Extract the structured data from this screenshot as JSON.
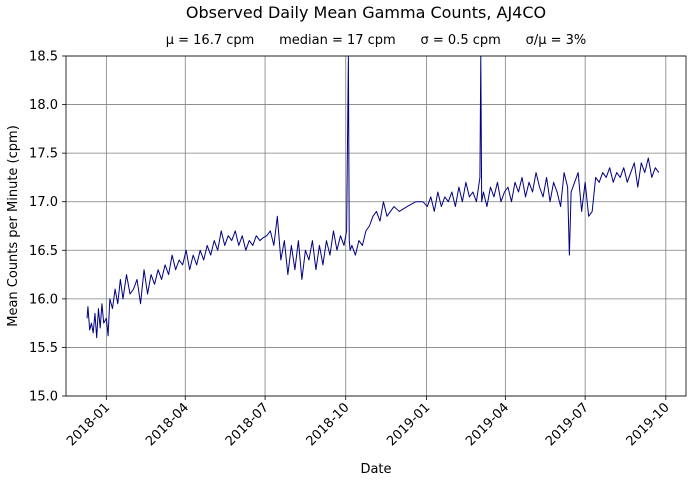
{
  "chart_data": {
    "type": "line",
    "title": "Observed Daily Mean Gamma Counts, AJ4CO",
    "subtitle": "μ = 16.7 cpm      median = 17 cpm      σ = 0.5 cpm      σ/μ = 3%",
    "xlabel": "Date",
    "ylabel": "Mean Counts per Minute (cpm)",
    "xlim": [
      "2017-11-16",
      "2019-10-24"
    ],
    "ylim": [
      15.0,
      18.5
    ],
    "grid": true,
    "line_color": "#000080",
    "x_ticks": [
      "2018-01-01",
      "2018-04-01",
      "2018-07-01",
      "2018-10-01",
      "2019-01-01",
      "2019-04-01",
      "2019-07-01",
      "2019-10-01"
    ],
    "x_tick_labels": [
      "2018-01",
      "2018-04",
      "2018-07",
      "2018-10",
      "2019-01",
      "2019-04",
      "2019-07",
      "2019-10"
    ],
    "y_ticks": [
      15.0,
      15.5,
      16.0,
      16.5,
      17.0,
      17.5,
      18.0,
      18.5
    ],
    "y_tick_labels": [
      "15.0",
      "15.5",
      "16.0",
      "16.5",
      "17.0",
      "17.5",
      "18.0",
      "18.5"
    ],
    "series": [
      {
        "x": [
          "2017-12-10",
          "2017-12-11",
          "2017-12-13",
          "2017-12-15",
          "2017-12-17",
          "2017-12-19",
          "2017-12-21",
          "2017-12-23",
          "2017-12-25",
          "2017-12-27",
          "2017-12-29",
          "2018-01-01",
          "2018-01-03",
          "2018-01-05",
          "2018-01-08",
          "2018-01-11",
          "2018-01-14",
          "2018-01-17",
          "2018-01-20",
          "2018-01-24",
          "2018-01-28",
          "2018-02-01",
          "2018-02-05",
          "2018-02-09",
          "2018-02-13",
          "2018-02-17",
          "2018-02-21",
          "2018-02-25",
          "2018-03-01",
          "2018-03-05",
          "2018-03-09",
          "2018-03-13",
          "2018-03-17",
          "2018-03-21",
          "2018-03-25",
          "2018-03-29",
          "2018-04-02",
          "2018-04-06",
          "2018-04-10",
          "2018-04-14",
          "2018-04-18",
          "2018-04-22",
          "2018-04-26",
          "2018-04-30",
          "2018-05-04",
          "2018-05-08",
          "2018-05-12",
          "2018-05-16",
          "2018-05-20",
          "2018-05-24",
          "2018-05-28",
          "2018-06-01",
          "2018-06-05",
          "2018-06-09",
          "2018-06-13",
          "2018-06-17",
          "2018-06-21",
          "2018-06-25",
          "2018-06-29",
          "2018-07-03",
          "2018-07-07",
          "2018-07-11",
          "2018-07-15",
          "2018-07-19",
          "2018-07-23",
          "2018-07-27",
          "2018-07-31",
          "2018-08-04",
          "2018-08-08",
          "2018-08-12",
          "2018-08-16",
          "2018-08-20",
          "2018-08-24",
          "2018-08-28",
          "2018-09-01",
          "2018-09-05",
          "2018-09-09",
          "2018-09-13",
          "2018-09-17",
          "2018-09-21",
          "2018-09-25",
          "2018-09-29",
          "2018-10-02",
          "2018-10-04",
          "2018-10-05",
          "2018-10-06",
          "2018-10-08",
          "2018-10-12",
          "2018-10-16",
          "2018-10-20",
          "2018-10-24",
          "2018-10-28",
          "2018-11-01",
          "2018-11-05",
          "2018-11-09",
          "2018-11-13",
          "2018-11-17",
          "2018-11-21",
          "2018-11-25",
          "2018-12-01",
          "2018-12-10",
          "2018-12-20",
          "2018-12-28",
          "2019-01-02",
          "2019-01-06",
          "2019-01-10",
          "2019-01-14",
          "2019-01-18",
          "2019-01-22",
          "2019-01-26",
          "2019-01-30",
          "2019-02-03",
          "2019-02-07",
          "2019-02-11",
          "2019-02-15",
          "2019-02-19",
          "2019-02-23",
          "2019-02-27",
          "2019-03-03",
          "2019-03-04",
          "2019-03-05",
          "2019-03-07",
          "2019-03-11",
          "2019-03-15",
          "2019-03-19",
          "2019-03-23",
          "2019-03-27",
          "2019-03-31",
          "2019-04-04",
          "2019-04-08",
          "2019-04-12",
          "2019-04-16",
          "2019-04-20",
          "2019-04-24",
          "2019-04-28",
          "2019-05-02",
          "2019-05-06",
          "2019-05-10",
          "2019-05-14",
          "2019-05-18",
          "2019-05-22",
          "2019-05-26",
          "2019-05-30",
          "2019-06-03",
          "2019-06-07",
          "2019-06-11",
          "2019-06-13",
          "2019-06-15",
          "2019-06-19",
          "2019-06-23",
          "2019-06-27",
          "2019-07-01",
          "2019-07-05",
          "2019-07-09",
          "2019-07-13",
          "2019-07-17",
          "2019-07-21",
          "2019-07-25",
          "2019-07-29",
          "2019-08-02",
          "2019-08-06",
          "2019-08-10",
          "2019-08-14",
          "2019-08-18",
          "2019-08-22",
          "2019-08-26",
          "2019-08-30",
          "2019-09-03",
          "2019-09-07",
          "2019-09-11",
          "2019-09-15",
          "2019-09-19",
          "2019-09-23"
        ],
        "y": [
          15.8,
          15.92,
          15.68,
          15.75,
          15.65,
          15.85,
          15.6,
          15.9,
          15.7,
          15.95,
          15.75,
          15.8,
          15.62,
          16.0,
          15.9,
          16.1,
          15.95,
          16.2,
          16.0,
          16.25,
          16.05,
          16.1,
          16.2,
          15.95,
          16.3,
          16.05,
          16.25,
          16.15,
          16.3,
          16.2,
          16.35,
          16.25,
          16.45,
          16.3,
          16.4,
          16.35,
          16.5,
          16.3,
          16.45,
          16.35,
          16.5,
          16.4,
          16.55,
          16.45,
          16.6,
          16.5,
          16.7,
          16.55,
          16.65,
          16.6,
          16.7,
          16.55,
          16.65,
          16.5,
          16.6,
          16.55,
          16.65,
          16.6,
          16.63,
          16.65,
          16.7,
          16.55,
          16.85,
          16.4,
          16.6,
          16.25,
          16.55,
          16.3,
          16.6,
          16.2,
          16.5,
          16.4,
          16.6,
          16.3,
          16.55,
          16.35,
          16.6,
          16.45,
          16.7,
          16.5,
          16.65,
          16.55,
          16.7,
          18.5,
          16.6,
          16.5,
          16.55,
          16.45,
          16.6,
          16.55,
          16.7,
          16.75,
          16.85,
          16.9,
          16.8,
          17.0,
          16.85,
          16.9,
          16.95,
          16.9,
          16.95,
          17.0,
          17.0,
          16.95,
          17.05,
          16.9,
          17.1,
          16.95,
          17.05,
          17.0,
          17.1,
          16.95,
          17.15,
          17.0,
          17.2,
          17.05,
          17.1,
          17.0,
          17.25,
          18.5,
          17.0,
          17.1,
          16.95,
          17.15,
          17.05,
          17.2,
          17.0,
          17.1,
          17.15,
          17.0,
          17.2,
          17.1,
          17.25,
          17.05,
          17.2,
          17.1,
          17.3,
          17.15,
          17.05,
          17.25,
          17.0,
          17.2,
          17.1,
          16.95,
          17.3,
          17.15,
          16.45,
          17.1,
          17.2,
          17.3,
          16.9,
          17.2,
          16.85,
          16.9,
          17.25,
          17.2,
          17.3,
          17.25,
          17.35,
          17.2,
          17.3,
          17.25,
          17.35,
          17.2,
          17.3,
          17.4,
          17.15,
          17.4,
          17.3,
          17.45,
          17.25,
          17.35,
          17.3
        ]
      }
    ]
  }
}
